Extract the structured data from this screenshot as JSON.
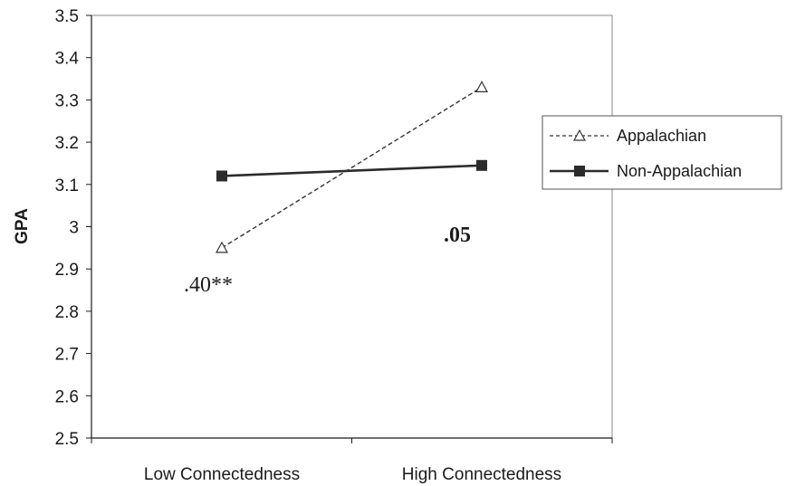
{
  "chart_data": {
    "type": "line",
    "title": "",
    "xlabel": "",
    "ylabel": "GPA",
    "ylim": [
      2.5,
      3.5
    ],
    "yticks": [
      "2.5",
      "2.6",
      "2.7",
      "2.8",
      "2.9",
      "3",
      "3.1",
      "3.2",
      "3.3",
      "3.4",
      "3.5"
    ],
    "categories": [
      "Low Connectedness",
      "High Connectedness"
    ],
    "series": [
      {
        "name": "Appalachian",
        "values": [
          2.95,
          3.33
        ],
        "line_style": "dashed",
        "marker": "open-triangle",
        "color": "#333333"
      },
      {
        "name": "Non-Appalachian",
        "values": [
          3.12,
          3.145
        ],
        "line_style": "solid",
        "marker": "filled-square",
        "color": "#2b2b2b"
      }
    ],
    "annotations": [
      {
        "text": ".40**",
        "near": "Appalachian Low Connectedness",
        "bold": false
      },
      {
        "text": ".05",
        "near": "Non-Appalachian High Connectedness",
        "bold": true
      }
    ],
    "grid": false,
    "legend_position": "right"
  }
}
